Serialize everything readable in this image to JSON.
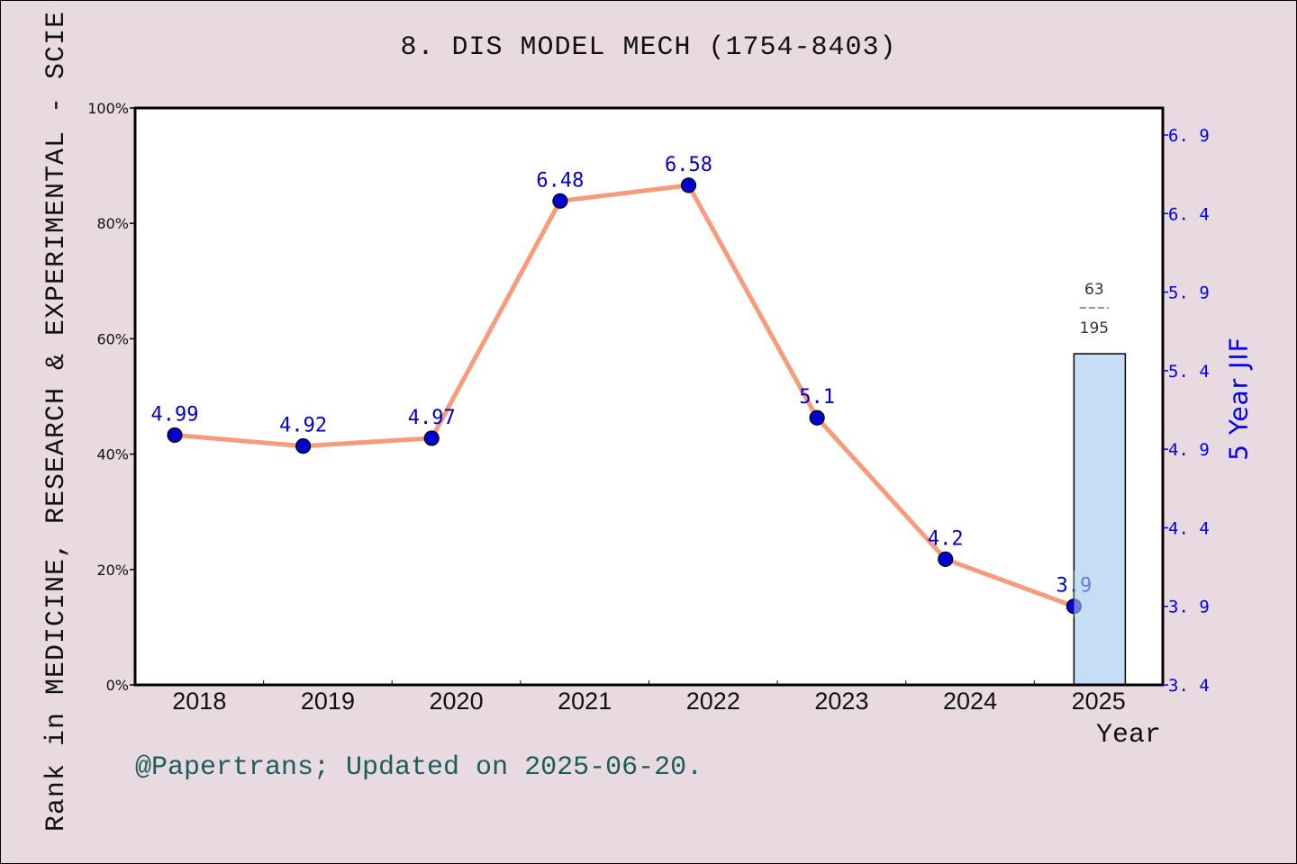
{
  "title": "8. DIS MODEL MECH (1754-8403)",
  "footer": "@Papertrans; Updated on 2025-06-20.",
  "colors": {
    "background": "#e9dae2",
    "plot_bg": "#ffffff",
    "line": "#f79b7a",
    "marker": "#0000cc",
    "point_label": "#0000cc",
    "bar_fill": "#c5def5",
    "right_axis": "#0000ee",
    "footer": "#1b5e58"
  },
  "chart_data": {
    "type": "line",
    "title": "8. DIS MODEL MECH (1754-8403)",
    "xlabel": "Year",
    "ylabel_left": "Rank in MEDICINE, RESEARCH & EXPERIMENTAL - SCIE",
    "ylabel_right": "5 Year JIF",
    "categories": [
      "2018",
      "2019",
      "2020",
      "2021",
      "2022",
      "2023",
      "2024",
      "2025"
    ],
    "left_axis": {
      "ticks": [
        "0%",
        "20%",
        "40%",
        "60%",
        "80%",
        "100%"
      ],
      "ylim": [
        0,
        100
      ]
    },
    "right_axis": {
      "ticks": [
        "3.4",
        "3.9",
        "4.4",
        "4.9",
        "5.4",
        "5.9",
        "6.4",
        "6.9"
      ],
      "ylim": [
        3.4,
        6.9
      ]
    },
    "series": [
      {
        "name": "5 Year JIF",
        "axis": "right",
        "values": [
          4.99,
          4.92,
          4.97,
          6.48,
          6.58,
          5.1,
          4.2,
          3.9
        ],
        "labels": [
          "4.99",
          "4.92",
          "4.97",
          "6.48",
          "6.58",
          "5.1",
          "4.2",
          "3.9"
        ]
      }
    ],
    "bars": [
      {
        "category": "2025",
        "axis": "left",
        "value_pct": 57.4,
        "rank": "63",
        "total": "195",
        "label_sep": "---"
      }
    ],
    "grid": false,
    "legend": null
  }
}
